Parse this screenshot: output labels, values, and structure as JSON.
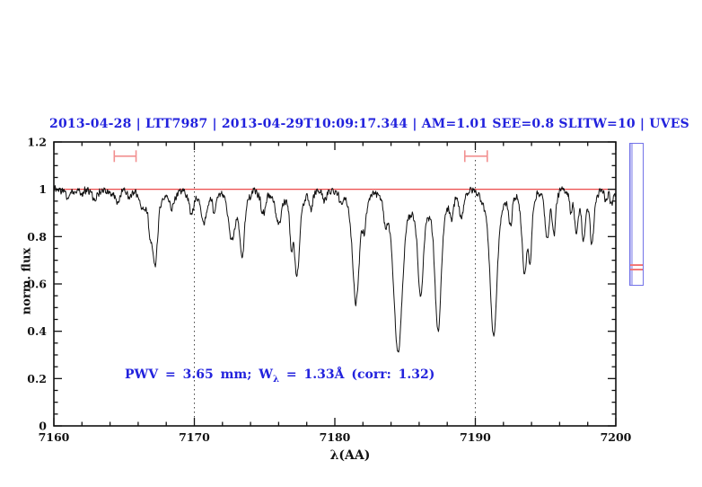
{
  "header": {
    "title": "2013-04-28 | LTT7987 | 2013-04-29T10:09:17.344 | AM=1.01 SEE=0.8 SLITW=10 | UVES",
    "color": "#2222dd"
  },
  "chart_data": {
    "type": "line",
    "title": "2013-04-28 | LTT7987 | 2013-04-29T10:09:17.344 | AM=1.01 SEE=0.8 SLITW=10 | UVES",
    "xlabel": "λ(AA)",
    "ylabel": "norm. flux",
    "xlim": [
      7160,
      7200
    ],
    "ylim": [
      0,
      1.2
    ],
    "x_major_step": 10,
    "x_minor_step": 2,
    "x_tick_labels": [
      "7160",
      "7170",
      "7180",
      "7190",
      "7200"
    ],
    "y_major_step": 0.2,
    "y_minor_step": 0.05,
    "y_tick_labels": [
      "0",
      "0.2",
      "0.4",
      "0.6",
      "0.8",
      "1",
      "1.2"
    ],
    "grid": "off",
    "legend": "none",
    "dotted_vlines": [
      7170,
      7190
    ],
    "spectrum_color": "#111111",
    "noise_sigma": 0.009,
    "continuum_fit": {
      "flux": 1.0,
      "color": "#e93434"
    },
    "absorption_lines": [
      {
        "wl": 7161.0,
        "min_flux": 0.965,
        "hwhm": 0.15
      },
      {
        "wl": 7162.0,
        "min_flux": 0.975,
        "hwhm": 0.12
      },
      {
        "wl": 7162.9,
        "min_flux": 0.955,
        "hwhm": 0.18
      },
      {
        "wl": 7164.5,
        "min_flux": 0.945,
        "hwhm": 0.2
      },
      {
        "wl": 7165.4,
        "min_flux": 0.965,
        "hwhm": 0.12
      },
      {
        "wl": 7166.3,
        "min_flux": 0.93,
        "hwhm": 0.2
      },
      {
        "wl": 7166.85,
        "min_flux": 0.87,
        "hwhm": 0.13
      },
      {
        "wl": 7167.2,
        "min_flux": 0.69,
        "hwhm": 0.2
      },
      {
        "wl": 7168.4,
        "min_flux": 0.915,
        "hwhm": 0.18
      },
      {
        "wl": 7169.8,
        "min_flux": 0.9,
        "hwhm": 0.18
      },
      {
        "wl": 7170.7,
        "min_flux": 0.86,
        "hwhm": 0.22
      },
      {
        "wl": 7171.4,
        "min_flux": 0.92,
        "hwhm": 0.12
      },
      {
        "wl": 7172.65,
        "min_flux": 0.79,
        "hwhm": 0.25
      },
      {
        "wl": 7173.4,
        "min_flux": 0.73,
        "hwhm": 0.18
      },
      {
        "wl": 7174.9,
        "min_flux": 0.9,
        "hwhm": 0.18
      },
      {
        "wl": 7176.0,
        "min_flux": 0.85,
        "hwhm": 0.22
      },
      {
        "wl": 7176.9,
        "min_flux": 0.8,
        "hwhm": 0.1
      },
      {
        "wl": 7177.3,
        "min_flux": 0.64,
        "hwhm": 0.2
      },
      {
        "wl": 7178.3,
        "min_flux": 0.91,
        "hwhm": 0.13
      },
      {
        "wl": 7179.3,
        "min_flux": 0.95,
        "hwhm": 0.15
      },
      {
        "wl": 7180.4,
        "min_flux": 0.96,
        "hwhm": 0.12
      },
      {
        "wl": 7181.5,
        "min_flux": 0.52,
        "hwhm": 0.25
      },
      {
        "wl": 7182.1,
        "min_flux": 0.87,
        "hwhm": 0.12
      },
      {
        "wl": 7183.6,
        "min_flux": 0.9,
        "hwhm": 0.12
      },
      {
        "wl": 7184.5,
        "min_flux": 0.31,
        "hwhm": 0.32
      },
      {
        "wl": 7186.1,
        "min_flux": 0.56,
        "hwhm": 0.22
      },
      {
        "wl": 7187.35,
        "min_flux": 0.4,
        "hwhm": 0.24
      },
      {
        "wl": 7188.3,
        "min_flux": 0.89,
        "hwhm": 0.13
      },
      {
        "wl": 7189.0,
        "min_flux": 0.87,
        "hwhm": 0.15
      },
      {
        "wl": 7191.3,
        "min_flux": 0.38,
        "hwhm": 0.26
      },
      {
        "wl": 7192.5,
        "min_flux": 0.855,
        "hwhm": 0.12
      },
      {
        "wl": 7193.5,
        "min_flux": 0.65,
        "hwhm": 0.18
      },
      {
        "wl": 7193.9,
        "min_flux": 0.72,
        "hwhm": 0.12
      },
      {
        "wl": 7195.1,
        "min_flux": 0.79,
        "hwhm": 0.15
      },
      {
        "wl": 7195.6,
        "min_flux": 0.82,
        "hwhm": 0.12
      },
      {
        "wl": 7196.8,
        "min_flux": 0.92,
        "hwhm": 0.1
      },
      {
        "wl": 7197.2,
        "min_flux": 0.82,
        "hwhm": 0.13
      },
      {
        "wl": 7197.7,
        "min_flux": 0.79,
        "hwhm": 0.13
      },
      {
        "wl": 7198.3,
        "min_flux": 0.775,
        "hwhm": 0.15
      },
      {
        "wl": 7199.3,
        "min_flux": 0.95,
        "hwhm": 0.1
      },
      {
        "wl": 7199.7,
        "min_flux": 0.93,
        "hwhm": 0.1
      }
    ],
    "range_markers": [
      {
        "wl_start": 7164.3,
        "wl_end": 7165.85,
        "flux": 1.14,
        "color": "#f29090"
      },
      {
        "wl_start": 7189.25,
        "wl_end": 7190.85,
        "flux": 1.14,
        "color": "#f29090"
      }
    ],
    "annotation": {
      "pre": "PWV = 3.65 mm; W",
      "sub": "λ",
      "post": " = 1.33Å (corr: 1.32)",
      "color": "#2222dd"
    }
  },
  "side_panel": {
    "border_color": "#7373e8",
    "band_color": "#bcbcf4",
    "red_line_color": "#f27878"
  }
}
